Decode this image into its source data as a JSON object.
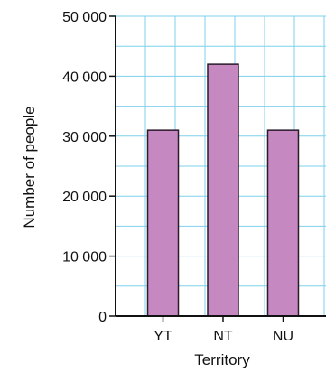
{
  "chart_data": {
    "type": "bar",
    "title": "",
    "xlabel": "Territory",
    "ylabel": "Number of people",
    "categories": [
      "YT",
      "NT",
      "NU"
    ],
    "values": [
      31000,
      42000,
      31000
    ],
    "ylim": [
      0,
      50000
    ],
    "y_ticks": [
      0,
      10000,
      20000,
      30000,
      40000,
      50000
    ],
    "y_tick_labels": [
      "0",
      "10 000",
      "20 000",
      "30 000",
      "40 000",
      "50 000"
    ],
    "grid": true,
    "colors": {
      "bar_fill": "#c588c1",
      "bar_stroke": "#2a1a2a",
      "grid": "#7fd0ec",
      "axis": "#111111"
    }
  }
}
